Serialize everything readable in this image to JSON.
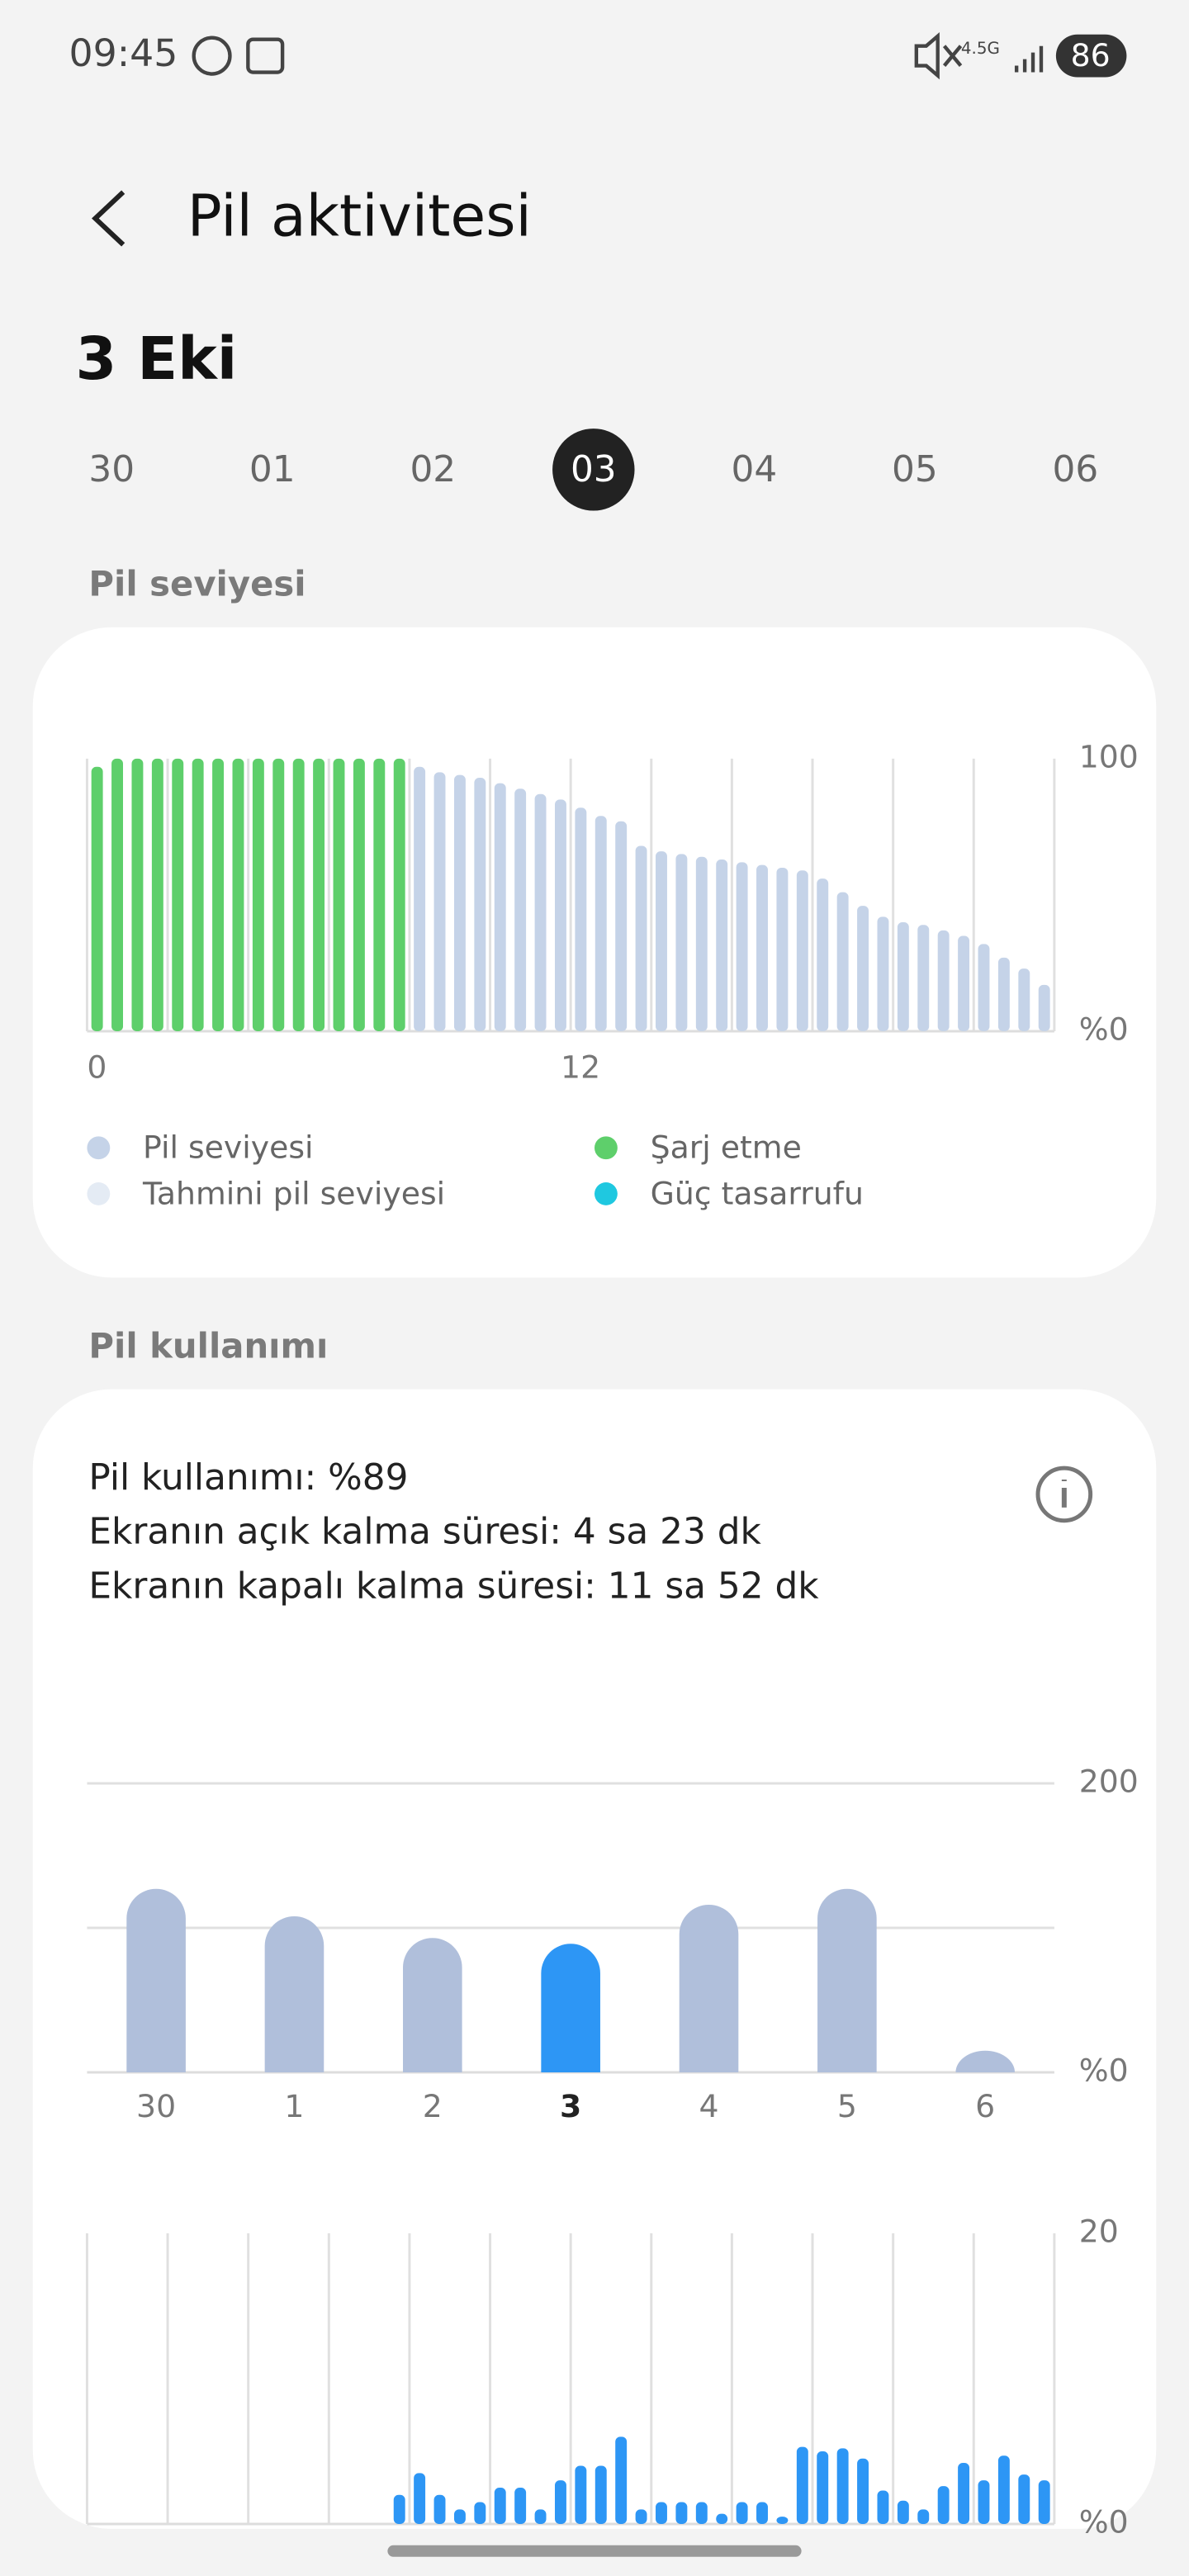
{
  "status_bar": {
    "time": "09:45",
    "network": "4.5G",
    "battery": "86"
  },
  "header": {
    "title": "Pil aktivitesi"
  },
  "date_title": "3 Eki",
  "day_selector": {
    "days": [
      "30",
      "01",
      "02",
      "03",
      "04",
      "05",
      "06"
    ],
    "selected": 3
  },
  "section_titles": [
    "Pil seviyesi",
    "Pil kullanımı"
  ],
  "usage_summary": [
    "Pil kullanımı: %89",
    "Ekranın açık kalma süresi: 4 sa 23 dk",
    "Ekranın kapalı kalma süresi: 11 sa 52 dk"
  ],
  "chart_data": [
    {
      "type": "bar",
      "x": [
        0,
        0.5,
        1,
        1.5,
        2,
        2.5,
        3,
        3.5,
        4,
        4.5,
        5,
        5.5,
        6,
        6.5,
        7,
        7.5,
        8,
        8.5,
        9,
        9.5,
        10,
        10.5,
        11,
        11.5,
        12,
        12.5,
        13,
        13.5,
        14,
        14.5,
        15,
        15.5,
        16,
        16.5,
        17,
        17.5,
        18,
        18.5,
        19,
        19.5,
        20,
        20.5,
        21,
        21.5,
        22,
        22.5,
        23,
        23.5
      ],
      "xlim": [
        0,
        24
      ],
      "xticks": [
        0,
        12
      ],
      "ylim": [
        0,
        100
      ],
      "yticks": [
        {
          "value": 0,
          "label": "%0"
        },
        100
      ],
      "series": [
        {
          "name": "Pil seviyesi",
          "color": "#c5d3e8",
          "values": [
            null,
            null,
            null,
            null,
            null,
            null,
            null,
            null,
            null,
            null,
            null,
            null,
            null,
            null,
            null,
            null,
            97,
            95,
            94,
            93,
            91,
            89,
            87,
            85,
            82,
            79,
            77,
            68,
            66,
            65,
            64,
            63,
            62,
            61,
            60,
            59,
            56,
            51,
            46,
            42,
            40,
            39,
            37,
            35,
            32,
            27,
            23,
            17
          ]
        },
        {
          "name": "Tahmini pil seviyesi",
          "color": "#e4ebf4",
          "values": [
            null,
            null,
            null,
            null,
            null,
            null,
            null,
            null,
            null,
            null,
            null,
            null,
            null,
            null,
            null,
            null,
            null,
            null,
            null,
            null,
            null,
            null,
            null,
            null,
            null,
            null,
            null,
            null,
            null,
            null,
            null,
            null,
            null,
            null,
            null,
            null,
            null,
            null,
            null,
            null,
            null,
            null,
            null,
            null,
            null,
            null,
            null,
            null
          ]
        },
        {
          "name": "Şarj etme",
          "color": "#5ecf6b",
          "values": [
            97,
            100,
            100,
            100,
            100,
            100,
            100,
            100,
            100,
            100,
            100,
            100,
            100,
            100,
            100,
            100,
            null,
            null,
            null,
            null,
            null,
            null,
            null,
            null,
            null,
            null,
            null,
            null,
            null,
            null,
            null,
            null,
            null,
            null,
            null,
            null,
            null,
            null,
            null,
            null,
            null,
            null,
            null,
            null,
            null,
            null,
            null,
            null
          ]
        },
        {
          "name": "Güç tasarrufu",
          "color": "#1fc8e0",
          "values": [
            null,
            null,
            null,
            null,
            null,
            null,
            null,
            null,
            null,
            null,
            null,
            null,
            null,
            null,
            null,
            null,
            null,
            null,
            null,
            null,
            null,
            null,
            null,
            null,
            null,
            null,
            null,
            null,
            null,
            null,
            null,
            null,
            null,
            null,
            null,
            null,
            null,
            null,
            null,
            null,
            null,
            null,
            null,
            null,
            null,
            null,
            null,
            null
          ]
        }
      ]
    },
    {
      "type": "column",
      "categories": [
        "30",
        "1",
        "2",
        "3",
        "4",
        "5",
        "6"
      ],
      "values": [
        127,
        108,
        93,
        89,
        116,
        127,
        15
      ],
      "colors": [
        "#b0bfdb",
        "#b0bfdb",
        "#b0bfdb",
        "#2d96f5",
        "#b0bfdb",
        "#b0bfdb",
        "#b0bfdb"
      ],
      "selected": 3,
      "ylim": [
        0,
        200
      ],
      "yticks": [
        {
          "value": 0,
          "label": "%0"
        },
        200
      ],
      "gridlines": [
        100,
        200
      ]
    },
    {
      "type": "bar",
      "x": [
        0,
        0.5,
        1,
        1.5,
        2,
        2.5,
        3,
        3.5,
        4,
        4.5,
        5,
        5.5,
        6,
        6.5,
        7,
        7.5,
        8,
        8.5,
        9,
        9.5,
        10,
        10.5,
        11,
        11.5,
        12,
        12.5,
        13,
        13.5,
        14,
        14.5,
        15,
        15.5,
        16,
        16.5,
        17,
        17.5,
        18,
        18.5,
        19,
        19.5,
        20,
        20.5,
        21,
        21.5,
        22,
        22.5,
        23,
        23.5
      ],
      "xlim": [
        0,
        24
      ],
      "ylim": [
        0,
        20
      ],
      "yticks": [
        {
          "value": 0,
          "label": "%0"
        },
        20
      ],
      "color": "#2d96f5",
      "values": [
        null,
        null,
        null,
        null,
        null,
        null,
        null,
        null,
        null,
        null,
        null,
        null,
        null,
        null,
        null,
        2,
        3.5,
        2,
        1,
        1.5,
        2.5,
        2.5,
        1,
        3,
        4,
        4,
        6,
        1,
        1.5,
        1.5,
        1.5,
        0.7,
        1.5,
        1.5,
        0.5,
        5.3,
        5,
        5.2,
        4.5,
        2.3,
        1.6,
        1,
        2.6,
        4.2,
        3,
        4.7,
        3.4,
        3
      ]
    }
  ]
}
